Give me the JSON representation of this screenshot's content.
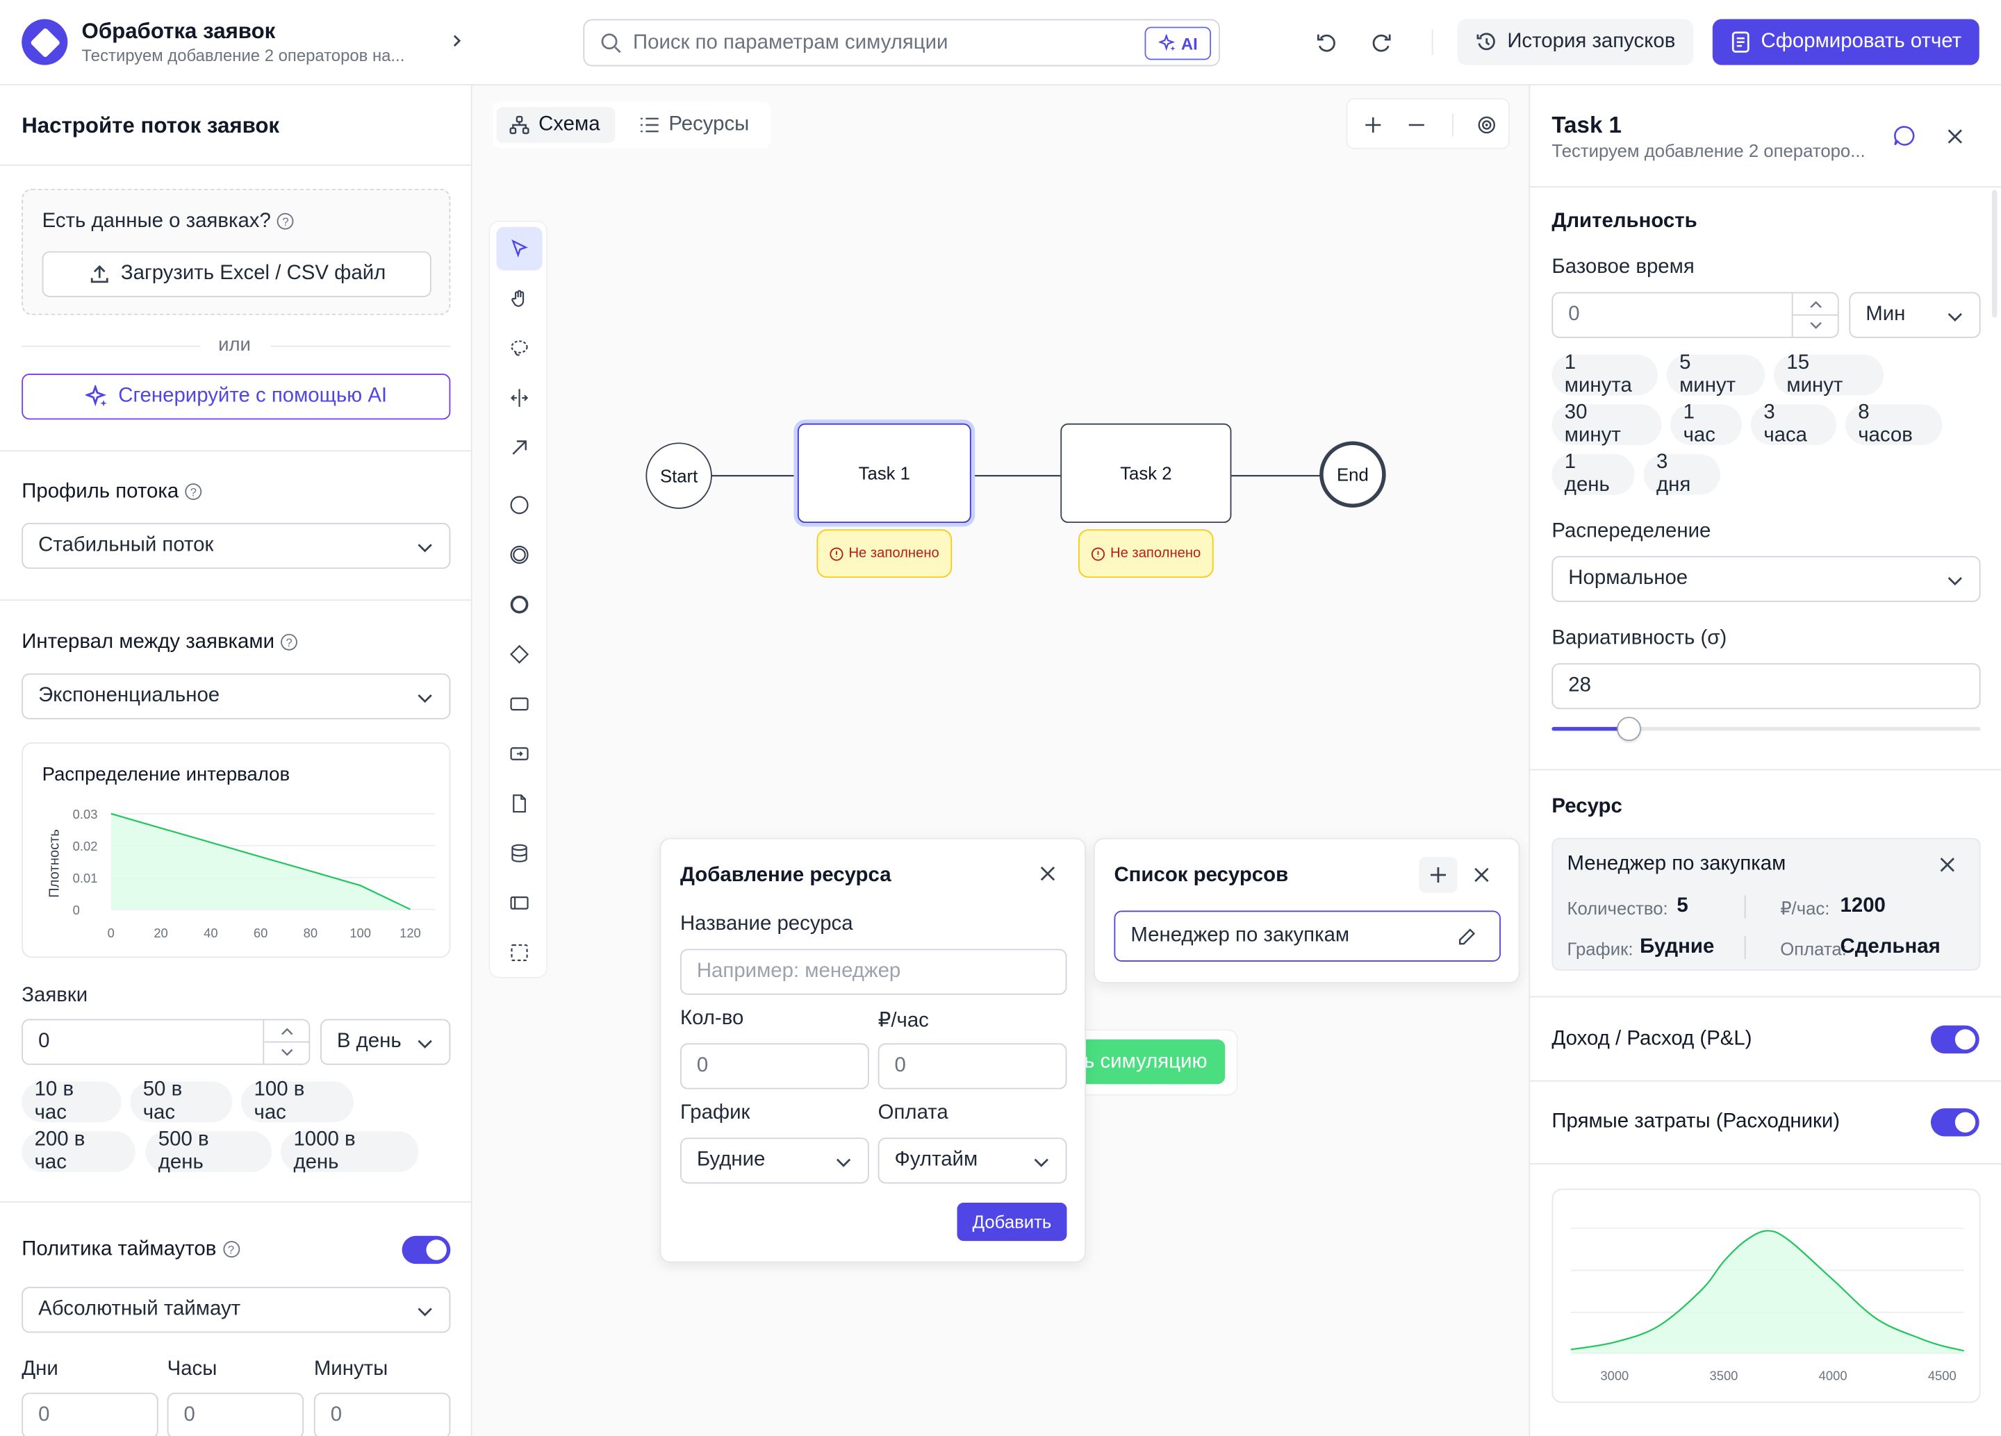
{
  "header": {
    "title": "Обработка заявок",
    "subtitle": "Тестируем добавление 2 операторов на...",
    "search_placeholder": "Поиск по параметрам симуляции",
    "ai_label": "AI",
    "history_label": "История запусков",
    "report_label": "Сформировать отчет"
  },
  "left": {
    "title": "Настройте поток заявок",
    "data_question": "Есть данные о заявках?",
    "upload_label": "Загрузить Excel / CSV файл",
    "or_label": "или",
    "ai_generate_label": "Сгенерируйте с помощью AI",
    "profile_label": "Профиль потока",
    "profile_value": "Стабильный поток",
    "interval_label": "Интервал между заявками",
    "interval_value": "Экспоненциальное",
    "requests_label": "Заявки",
    "requests_value": "0",
    "requests_unit": "В день",
    "request_chips": [
      "10 в час",
      "50 в час",
      "100 в час",
      "200 в час",
      "500 в день",
      "1000 в день"
    ],
    "timeout_label": "Политика таймаутов",
    "timeout_enabled": true,
    "timeout_value": "Абсолютный таймаут",
    "days_label": "Дни",
    "hours_label": "Часы",
    "minutes_label": "Минуты",
    "days_value": "0",
    "hours_value": "0",
    "minutes_value": "0"
  },
  "interval_chart": {
    "title": "Распределение интервалов",
    "ylabel": "Плотность",
    "y_ticks": [
      "0.03",
      "0.02",
      "0.01",
      "0"
    ],
    "x_ticks": [
      "0",
      "20",
      "40",
      "60",
      "80",
      "100",
      "120"
    ]
  },
  "chart_data": [
    {
      "type": "area",
      "title": "Распределение интервалов",
      "xlabel": "",
      "ylabel": "Плотность",
      "x": [
        0,
        20,
        40,
        60,
        80,
        100,
        120
      ],
      "values": [
        0.03,
        0.0255,
        0.021,
        0.0165,
        0.012,
        0.0075,
        0.0
      ],
      "xlim": [
        0,
        130
      ],
      "ylim": [
        0,
        0.03
      ],
      "grid": true,
      "color": "#22c55e"
    },
    {
      "type": "area",
      "title": "",
      "xlabel": "",
      "ylabel": "",
      "x": [
        2800,
        3000,
        3200,
        3400,
        3500,
        3600,
        3700,
        3800,
        4000,
        4200,
        4400,
        4500,
        4600
      ],
      "values": [
        0.03,
        0.09,
        0.22,
        0.52,
        0.75,
        0.92,
        1.0,
        0.92,
        0.6,
        0.28,
        0.12,
        0.06,
        0.02
      ],
      "xlim": [
        2800,
        4600
      ],
      "x_ticks": [
        3000,
        3500,
        4000,
        4500
      ],
      "grid": true,
      "color": "#22c55e"
    }
  ],
  "canvas": {
    "tab_schema": "Схема",
    "tab_resources": "Ресурсы",
    "nodes": {
      "start": "Start",
      "task1": "Task 1",
      "task2": "Task 2",
      "end": "End"
    },
    "badge_text": "Не заполнено",
    "run_button_partial": "ь симуляцию",
    "add_resource": {
      "title": "Добавление ресурса",
      "name_label": "Название ресурса",
      "name_placeholder": "Например: менеджер",
      "qty_label": "Кол-во",
      "qty_value": "0",
      "rate_label": "₽/час",
      "rate_value": "0",
      "schedule_label": "График",
      "schedule_value": "Будние",
      "payment_label": "Оплата",
      "payment_value": "Фултайм",
      "add_button": "Добавить"
    },
    "resource_list": {
      "title": "Список ресурсов",
      "item": "Менеджер по закупкам"
    }
  },
  "right": {
    "title": "Task 1",
    "subtitle": "Тестируем добавление 2 операторо...",
    "duration_title": "Длительность",
    "base_time_label": "Базовое время",
    "base_time_value": "0",
    "base_time_unit": "Мин",
    "time_chips": [
      "1 минута",
      "5 минут",
      "15 минут",
      "30 минут",
      "1 час",
      "3 часа",
      "8 часов",
      "1 день",
      "3 дня"
    ],
    "distribution_label": "Распеределение",
    "distribution_value": "Нормальное",
    "variability_label": "Вариативность (σ)",
    "variability_value": "28",
    "variability_slider": 0.18,
    "resource_title": "Ресурс",
    "resource_name": "Менеджер по закупкам",
    "qty_label": "Количество:",
    "qty_value": "5",
    "rate_label": "₽/час:",
    "rate_value": "1200",
    "schedule_label": "График:",
    "schedule_value": "Будние",
    "payment_label": "Оплата:",
    "payment_value": "Сдельная",
    "pl_label": "Доход / Расход (P&L)",
    "pl_enabled": true,
    "direct_costs_label": "Прямые затраты (Расходники)",
    "direct_costs_enabled": true,
    "dist_chart_ticks": [
      "3000",
      "3500",
      "4000",
      "4500"
    ]
  },
  "colors": {
    "primary": "#4f46e5",
    "success": "#22c55e",
    "warning_bg": "#fef9c3",
    "warning_border": "#facc15",
    "danger": "#b91c1c"
  }
}
